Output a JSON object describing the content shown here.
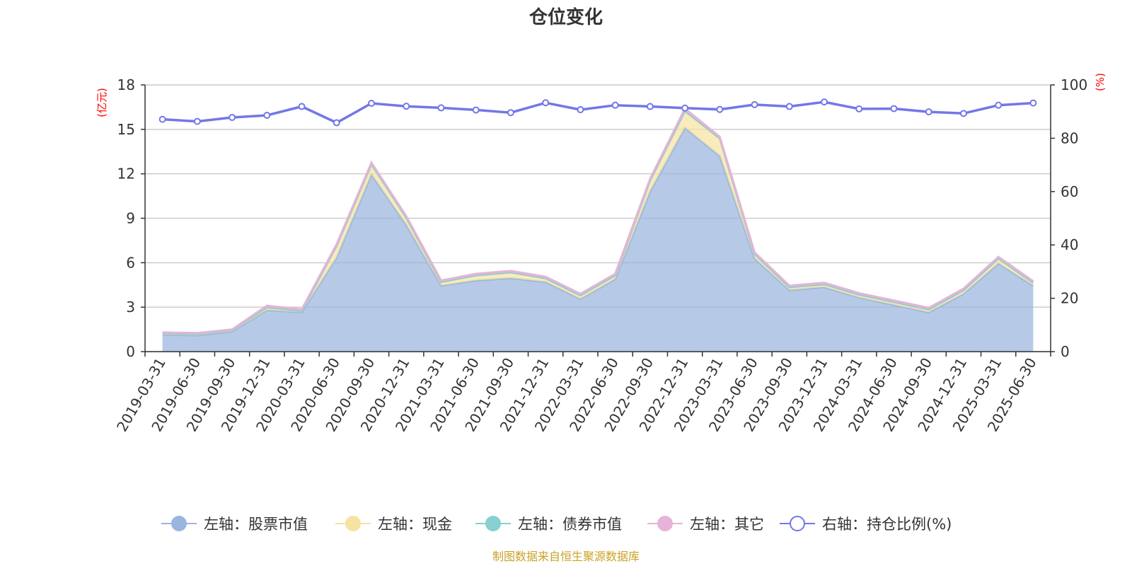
{
  "chart_data": {
    "type": "area",
    "title": "仓位变化",
    "left_unit": "(亿元)",
    "right_unit": "(%)",
    "x": [
      "2019-03-31",
      "2019-06-30",
      "2019-09-30",
      "2019-12-31",
      "2020-03-31",
      "2020-06-30",
      "2020-09-30",
      "2020-12-31",
      "2021-03-31",
      "2021-06-30",
      "2021-09-30",
      "2021-12-31",
      "2022-03-31",
      "2022-06-30",
      "2022-09-30",
      "2022-12-31",
      "2023-03-31",
      "2023-06-30",
      "2023-09-30",
      "2023-12-31",
      "2024-03-31",
      "2024-06-30",
      "2024-09-30",
      "2024-12-31",
      "2025-03-31",
      "2025-06-30"
    ],
    "y_left_ticks": [
      0,
      3,
      6,
      9,
      12,
      15,
      18
    ],
    "y_right_ticks": [
      0,
      20,
      40,
      60,
      80,
      100
    ],
    "y_left_lim": [
      0,
      18
    ],
    "y_right_lim": [
      0,
      100
    ],
    "grid": true,
    "legend_position": "bottom",
    "stacked": true,
    "series": [
      {
        "name": "左轴：股票市值",
        "axis": "left",
        "color": "#9ab6de",
        "values": [
          1.15,
          1.1,
          1.35,
          2.8,
          2.65,
          6.35,
          11.95,
          8.55,
          4.45,
          4.8,
          4.95,
          4.7,
          3.55,
          4.9,
          10.8,
          15.1,
          13.2,
          6.3,
          4.15,
          4.35,
          3.65,
          3.15,
          2.65,
          3.9,
          5.95,
          4.45
        ]
      },
      {
        "name": "左轴：现金",
        "axis": "left",
        "color": "#f6e3a1",
        "values": [
          0.1,
          0.1,
          0.1,
          0.2,
          0.1,
          0.8,
          0.7,
          0.5,
          0.25,
          0.35,
          0.4,
          0.25,
          0.25,
          0.25,
          0.75,
          1.15,
          1.2,
          0.3,
          0.2,
          0.2,
          0.2,
          0.2,
          0.2,
          0.25,
          0.35,
          0.2
        ]
      },
      {
        "name": "左轴：债券市值",
        "axis": "left",
        "color": "#88cfcf",
        "values": [
          0,
          0,
          0,
          0,
          0,
          0,
          0,
          0,
          0,
          0,
          0,
          0,
          0,
          0,
          0,
          0,
          0,
          0,
          0,
          0,
          0,
          0,
          0,
          0,
          0,
          0
        ]
      },
      {
        "name": "左轴：其它",
        "axis": "left",
        "color": "#e5b4d8",
        "values": [
          0.05,
          0.05,
          0.05,
          0.1,
          0.1,
          0.1,
          0.1,
          0.1,
          0.1,
          0.1,
          0.1,
          0.1,
          0.1,
          0.1,
          0.1,
          0.15,
          0.1,
          0.1,
          0.1,
          0.1,
          0.1,
          0.1,
          0.1,
          0.1,
          0.1,
          0.1
        ]
      },
      {
        "name": "右轴：持仓比例(%)",
        "axis": "right",
        "color": "#7377e8",
        "values": [
          87.1,
          86.3,
          87.8,
          88.6,
          91.9,
          85.8,
          93.1,
          92.0,
          91.4,
          90.6,
          89.6,
          93.3,
          90.7,
          92.4,
          91.9,
          91.3,
          90.8,
          92.6,
          91.9,
          93.6,
          91.0,
          91.1,
          89.9,
          89.3,
          92.4,
          93.2
        ]
      }
    ]
  },
  "source_text": "制图数据来自恒生聚源数据库"
}
